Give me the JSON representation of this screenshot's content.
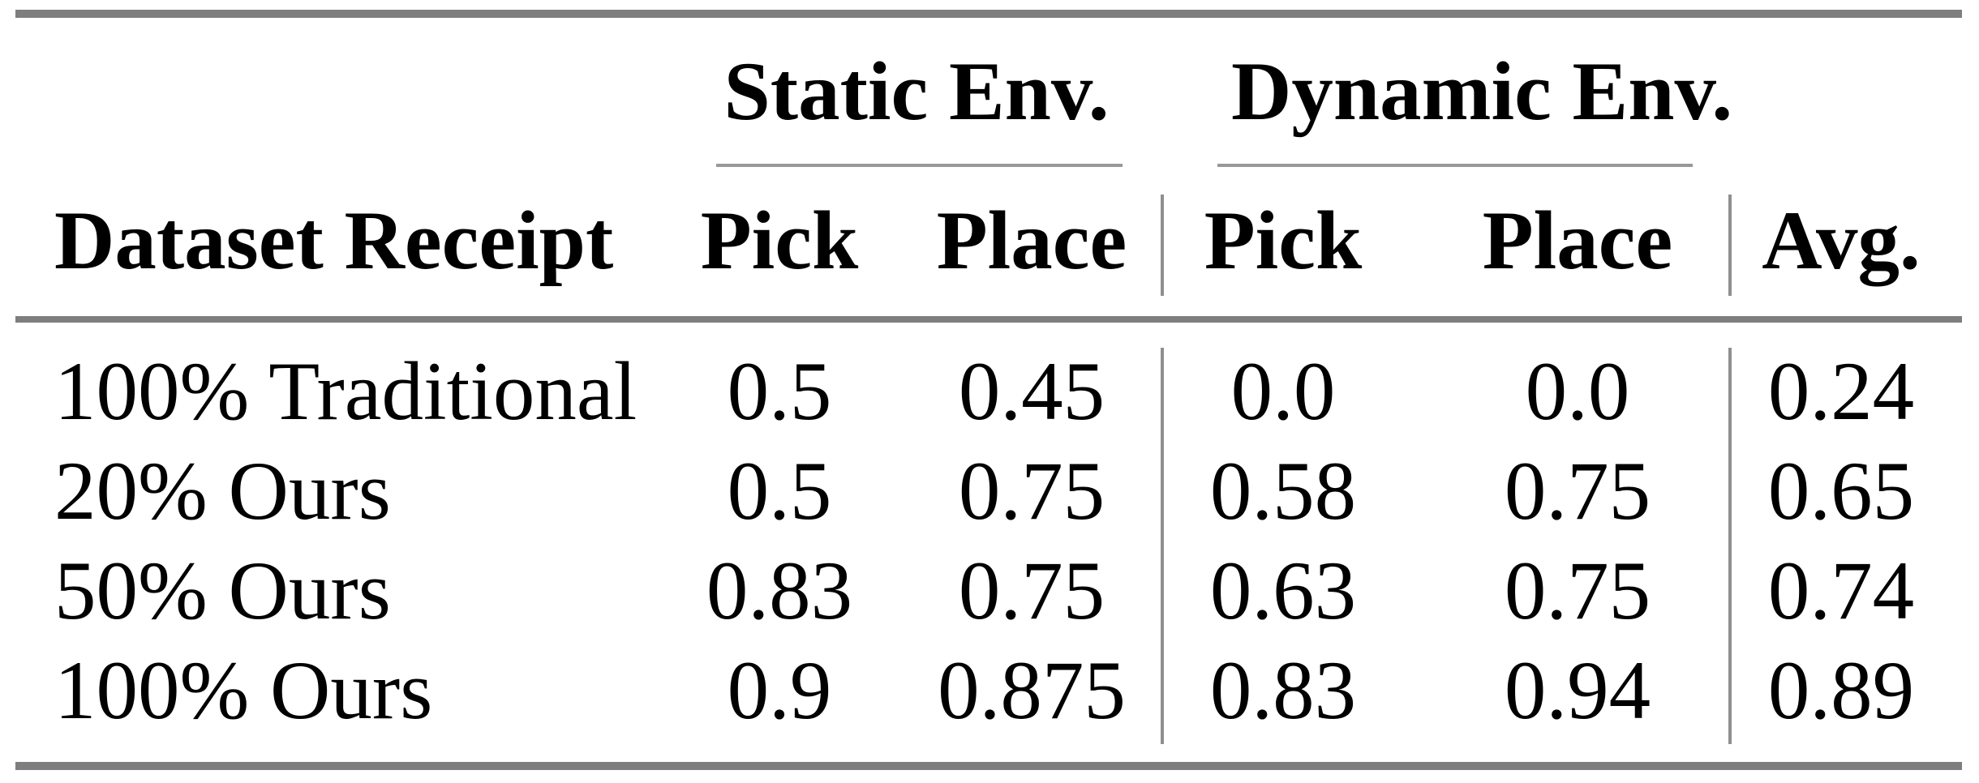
{
  "page": {
    "background": "#ffffff",
    "description": "Academic paper results table: pick-and-place success rates in static and dynamic environments"
  },
  "colors": {
    "text": "#000000",
    "heavy_rule": "#7e7e7e",
    "group_underline": "#999999",
    "column_separator": "#8f8f8f"
  },
  "table": {
    "column_groups": [
      {
        "label": "Static Env."
      },
      {
        "label": "Dynamic Env."
      }
    ],
    "column_headers": {
      "row_header": "Dataset Receipt",
      "static_pick": "Pick",
      "static_place": "Place",
      "dynamic_pick": "Pick",
      "dynamic_place": "Place",
      "avg": "Avg."
    },
    "rows": [
      {
        "label": "100% Traditional",
        "static_pick": "0.5",
        "static_place": "0.45",
        "dynamic_pick": "0.0",
        "dynamic_place": "0.0",
        "avg": "0.24"
      },
      {
        "label": "20% Ours",
        "static_pick": "0.5",
        "static_place": "0.75",
        "dynamic_pick": "0.58",
        "dynamic_place": "0.75",
        "avg": "0.65"
      },
      {
        "label": "50% Ours",
        "static_pick": "0.83",
        "static_place": "0.75",
        "dynamic_pick": "0.63",
        "dynamic_place": "0.75",
        "avg": "0.74"
      },
      {
        "label": "100% Ours",
        "static_pick": "0.9",
        "static_place": "0.875",
        "dynamic_pick": "0.83",
        "dynamic_place": "0.94",
        "avg": "0.89"
      }
    ]
  },
  "chart_data": {
    "type": "table",
    "columns": [
      "Dataset Receipt",
      "Static Env. Pick",
      "Static Env. Place",
      "Dynamic Env. Pick",
      "Dynamic Env. Place",
      "Avg."
    ],
    "rows": [
      [
        "100% Traditional",
        0.5,
        0.45,
        0.0,
        0.0,
        0.24
      ],
      [
        "20% Ours",
        0.5,
        0.75,
        0.58,
        0.75,
        0.65
      ],
      [
        "50% Ours",
        0.83,
        0.75,
        0.63,
        0.75,
        0.74
      ],
      [
        "100% Ours",
        0.9,
        0.875,
        0.83,
        0.94,
        0.89
      ]
    ]
  }
}
